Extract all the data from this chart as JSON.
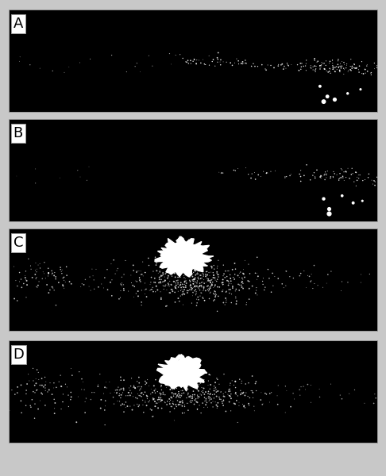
{
  "panels": [
    "A",
    "B",
    "C",
    "D"
  ],
  "figure_bg": "#c8c8c8",
  "panel_bg": "#000000",
  "label_bg": "#ffffff",
  "label_color": "#000000",
  "label_fontsize": 13,
  "figsize": [
    4.86,
    6.0
  ],
  "dpi": 100
}
